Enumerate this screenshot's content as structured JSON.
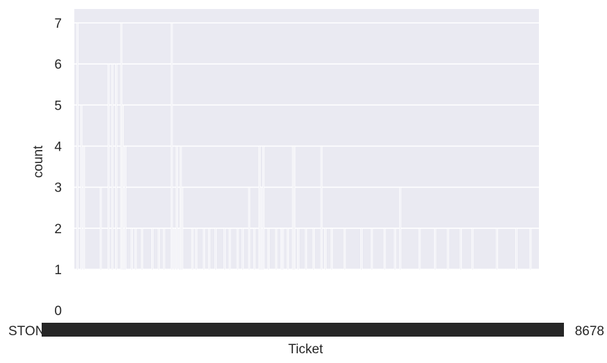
{
  "chart_data": {
    "type": "bar",
    "xlabel": "Ticket",
    "ylabel": "count",
    "ylim": [
      0,
      7.35
    ],
    "yticks": [
      0,
      1,
      2,
      3,
      4,
      5,
      6,
      7
    ],
    "grid": true,
    "background": "#eaeaf2",
    "bar_edge_color": "#ffffff",
    "xtick_first_visible": "STON",
    "xtick_last_visible": "...8678",
    "values": [
      1,
      1,
      7,
      1,
      1,
      5,
      1,
      4,
      1,
      1,
      1,
      1,
      1,
      1,
      1,
      1,
      1,
      1,
      1,
      1,
      3,
      1,
      1,
      1,
      1,
      1,
      6,
      1,
      1,
      6,
      1,
      1,
      6,
      1,
      1,
      1,
      7,
      5,
      2,
      4,
      1,
      1,
      1,
      1,
      2,
      1,
      1,
      2,
      1,
      1,
      1,
      1,
      2,
      1,
      1,
      1,
      1,
      1,
      1,
      1,
      2,
      1,
      1,
      1,
      1,
      2,
      1,
      1,
      1,
      2,
      1,
      1,
      1,
      1,
      1,
      7,
      1,
      2,
      1,
      4,
      1,
      2,
      4,
      3,
      1,
      1,
      1,
      1,
      1,
      1,
      1,
      2,
      1,
      1,
      2,
      1,
      1,
      1,
      1,
      1,
      2,
      1,
      1,
      1,
      2,
      1,
      1,
      1,
      1,
      2,
      1,
      1,
      1,
      1,
      1,
      1,
      2,
      1,
      1,
      1,
      2,
      1,
      1,
      1,
      1,
      1,
      2,
      1,
      1,
      1,
      2,
      1,
      1,
      1,
      1,
      3,
      1,
      1,
      1,
      2,
      1,
      1,
      1,
      4,
      3,
      2,
      4,
      1,
      1,
      1,
      2,
      1,
      1,
      1,
      1,
      1,
      2,
      1,
      1,
      1,
      2,
      2,
      1,
      1,
      1,
      2,
      1,
      1,
      1,
      4,
      4,
      1,
      1,
      2,
      1,
      1,
      1,
      1,
      1,
      2,
      1,
      1,
      1,
      1,
      1,
      2,
      1,
      1,
      1,
      1,
      1,
      4,
      1,
      1,
      2,
      1,
      1,
      1,
      1,
      2,
      1,
      1,
      1,
      1,
      1,
      1,
      1,
      1,
      1,
      2,
      1,
      1,
      1,
      1,
      1,
      1,
      1,
      1,
      1,
      1,
      1,
      1,
      2,
      1,
      1,
      1,
      1,
      1,
      1,
      1,
      2,
      1,
      1,
      1,
      1,
      1,
      1,
      1,
      1,
      1,
      2,
      1,
      1,
      1,
      1,
      1,
      1,
      1,
      2,
      1,
      1,
      1,
      3,
      1,
      1,
      1,
      1,
      1,
      1,
      1,
      1,
      1,
      1,
      1,
      1,
      1,
      1,
      2,
      1,
      1,
      1,
      1,
      1,
      1,
      1,
      1,
      1,
      1,
      1,
      2,
      1,
      1,
      1,
      1,
      1,
      1,
      1,
      1,
      1,
      2,
      1,
      1,
      1,
      1,
      1,
      1,
      1,
      1,
      1,
      2,
      1,
      1,
      1,
      1,
      1,
      1,
      1,
      1,
      2,
      1,
      1,
      1,
      1,
      1,
      1,
      1,
      1,
      1,
      1,
      1,
      1,
      1,
      1,
      1,
      1,
      1,
      1,
      2,
      1,
      1,
      1,
      1,
      1,
      1,
      1,
      1,
      1,
      1,
      1,
      1,
      1,
      1,
      2,
      1,
      1,
      1,
      1,
      1,
      1,
      1,
      1,
      1,
      1,
      2,
      1,
      1,
      1,
      1,
      1,
      1
    ]
  }
}
